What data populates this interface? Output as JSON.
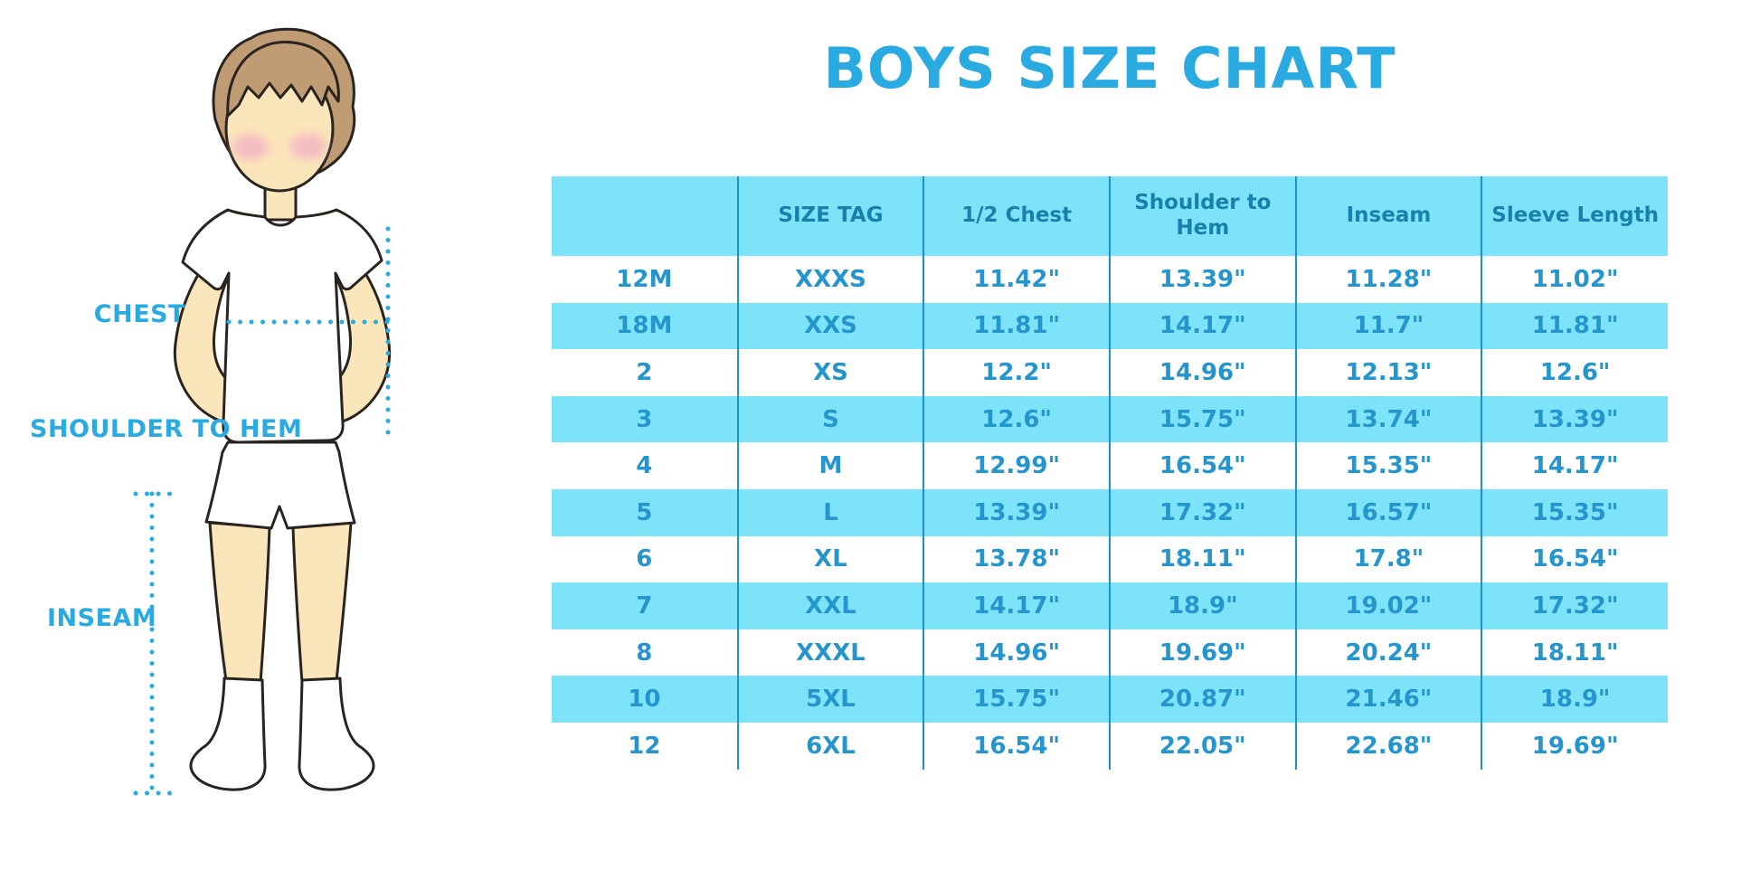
{
  "title": "BOYS SIZE CHART",
  "colors": {
    "accent": "#29abe2",
    "table_header_bg": "#7ce3f8",
    "row_alt_bg": "#7ce3f8",
    "header_text": "#1b7fae",
    "cell_text": "#2596cd",
    "divider": "#1b94cc",
    "outline": "#29241f",
    "skin": "#fbe5ba",
    "hair": "#bf9c73",
    "blush": "#f3b6c4"
  },
  "diagram": {
    "labels": {
      "chest": "CHEST",
      "shoulder_to_hem": "SHOULDER TO HEM",
      "inseam": "INSEAM"
    }
  },
  "chart_data": {
    "type": "table",
    "title": "BOYS SIZE CHART",
    "columns": [
      "",
      "SIZE TAG",
      "1/2 Chest",
      "Shoulder to Hem",
      "Inseam",
      "Sleeve Length"
    ],
    "rows": [
      [
        "12M",
        "XXXS",
        "11.42\"",
        "13.39\"",
        "11.28\"",
        "11.02\""
      ],
      [
        "18M",
        "XXS",
        "11.81\"",
        "14.17\"",
        "11.7\"",
        "11.81\""
      ],
      [
        "2",
        "XS",
        "12.2\"",
        "14.96\"",
        "12.13\"",
        "12.6\""
      ],
      [
        "3",
        "S",
        "12.6\"",
        "15.75\"",
        "13.74\"",
        "13.39\""
      ],
      [
        "4",
        "M",
        "12.99\"",
        "16.54\"",
        "15.35\"",
        "14.17\""
      ],
      [
        "5",
        "L",
        "13.39\"",
        "17.32\"",
        "16.57\"",
        "15.35\""
      ],
      [
        "6",
        "XL",
        "13.78\"",
        "18.11\"",
        "17.8\"",
        "16.54\""
      ],
      [
        "7",
        "XXL",
        "14.17\"",
        "18.9\"",
        "19.02\"",
        "17.32\""
      ],
      [
        "8",
        "XXXL",
        "14.96\"",
        "19.69\"",
        "20.24\"",
        "18.11\""
      ],
      [
        "10",
        "5XL",
        "15.75\"",
        "20.87\"",
        "21.46\"",
        "18.9\""
      ],
      [
        "12",
        "6XL",
        "16.54\"",
        "22.05\"",
        "22.68\"",
        "19.69\""
      ]
    ]
  }
}
